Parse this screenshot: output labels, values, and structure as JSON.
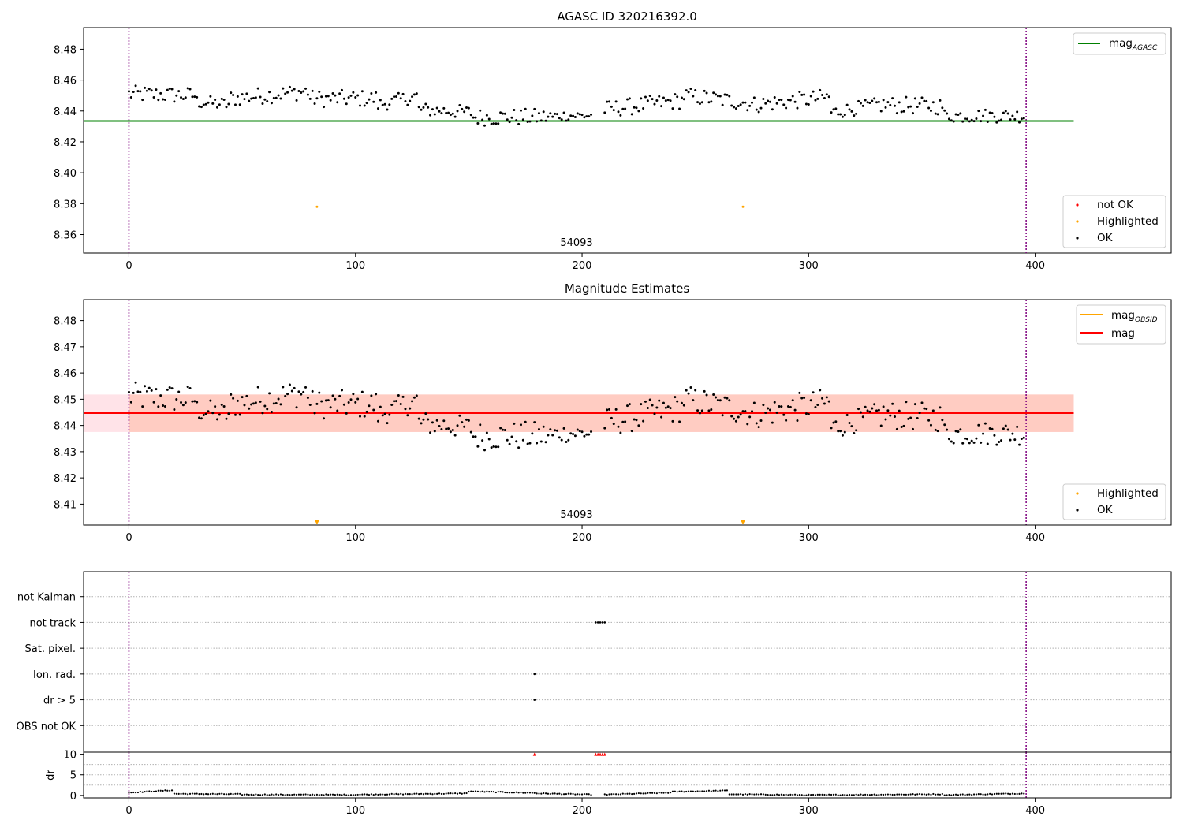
{
  "chart_data": [
    {
      "type": "scatter",
      "title": "AGASC ID 320216392.0",
      "xlim": [
        -20,
        460
      ],
      "ylim": [
        8.348,
        8.494
      ],
      "xticks": [
        0,
        100,
        200,
        300,
        400
      ],
      "yticks": [
        8.36,
        8.38,
        8.4,
        8.42,
        8.44,
        8.46,
        8.48
      ],
      "annotation": "54093",
      "vlines": [
        0,
        396
      ],
      "hline": {
        "name": "mag_AGASC",
        "value": 8.4335,
        "x_range": [
          -20,
          417
        ],
        "color": "#008000"
      },
      "highlighted_points": [
        {
          "x": 83,
          "y": 8.378
        },
        {
          "x": 271,
          "y": 8.378
        }
      ],
      "legend_top": {
        "position": "top-right",
        "entries": [
          {
            "label": "mag",
            "sub": "AGASC",
            "color": "#008000"
          }
        ]
      },
      "legend_bottom": {
        "position": "bottom-right",
        "entries": [
          {
            "label": "not OK",
            "color": "#ff0000"
          },
          {
            "label": "Highlighted",
            "color": "#ffa500"
          },
          {
            "label": "OK",
            "color": "#000000"
          }
        ]
      },
      "series": [
        {
          "name": "OK",
          "segments": [
            {
              "x0": 0,
              "x1": 30,
              "y0": 8.451,
              "y1": 8.45,
              "amp": 0.0055
            },
            {
              "x0": 30,
              "x1": 45,
              "y0": 8.446,
              "y1": 8.444,
              "amp": 0.0045
            },
            {
              "x0": 45,
              "x1": 80,
              "y0": 8.448,
              "y1": 8.453,
              "amp": 0.0055
            },
            {
              "x0": 80,
              "x1": 110,
              "y0": 8.448,
              "y1": 8.448,
              "amp": 0.0055
            },
            {
              "x0": 110,
              "x1": 128,
              "y0": 8.444,
              "y1": 8.45,
              "amp": 0.0045
            },
            {
              "x0": 128,
              "x1": 152,
              "y0": 8.441,
              "y1": 8.439,
              "amp": 0.0045
            },
            {
              "x0": 152,
              "x1": 190,
              "y0": 8.436,
              "y1": 8.436,
              "amp": 0.0055
            },
            {
              "x0": 190,
              "x1": 205,
              "y0": 8.437,
              "y1": 8.437,
              "amp": 0.0035
            },
            {
              "x0": 210,
              "x1": 245,
              "y0": 8.441,
              "y1": 8.447,
              "amp": 0.0055
            },
            {
              "x0": 245,
              "x1": 275,
              "y0": 8.45,
              "y1": 8.445,
              "amp": 0.0055
            },
            {
              "x0": 275,
              "x1": 310,
              "y0": 8.444,
              "y1": 8.449,
              "amp": 0.0055
            },
            {
              "x0": 310,
              "x1": 330,
              "y0": 8.439,
              "y1": 8.444,
              "amp": 0.0045
            },
            {
              "x0": 330,
              "x1": 360,
              "y0": 8.444,
              "y1": 8.443,
              "amp": 0.0055
            },
            {
              "x0": 360,
              "x1": 396,
              "y0": 8.437,
              "y1": 8.437,
              "amp": 0.0045
            }
          ]
        }
      ]
    },
    {
      "type": "scatter",
      "title": "Magnitude Estimates",
      "xlim": [
        -20,
        460
      ],
      "ylim": [
        8.402,
        8.488
      ],
      "xticks": [
        0,
        100,
        200,
        300,
        400
      ],
      "yticks": [
        8.41,
        8.42,
        8.43,
        8.44,
        8.45,
        8.46,
        8.47,
        8.48
      ],
      "annotation": "54093",
      "vlines": [
        0,
        396
      ],
      "mag": {
        "value": 8.4447,
        "x_range": [
          -20,
          417
        ],
        "color": "#ff0000"
      },
      "mag_obsid": {
        "value": 8.4447,
        "band": [
          8.4375,
          8.4518
        ],
        "x_range": [
          0,
          417
        ],
        "color": "#ffa500"
      },
      "band_color": "#ffc0cb",
      "highlighted_markers": [
        {
          "x": 83,
          "y": 8.4025
        },
        {
          "x": 271,
          "y": 8.4025
        }
      ],
      "legend_top": {
        "position": "top-right",
        "entries": [
          {
            "label": "mag",
            "sub": "OBSID",
            "color": "#ffa500"
          },
          {
            "label": "mag",
            "sub": "",
            "color": "#ff0000"
          }
        ]
      },
      "legend_bottom": {
        "position": "bottom-right",
        "entries": [
          {
            "label": "Highlighted",
            "color": "#ffa500"
          },
          {
            "label": "OK",
            "color": "#000000"
          }
        ]
      },
      "series": [
        {
          "name": "OK",
          "same_as_panel": 0
        }
      ]
    },
    {
      "type": "scatter",
      "title": "",
      "xlim": [
        -20,
        460
      ],
      "xticks": [
        0,
        100,
        200,
        300,
        400
      ],
      "vlines": [
        0,
        396
      ],
      "categories": [
        "not Kalman",
        "not track",
        "Sat. pixel.",
        "Ion. rad.",
        "dr > 5",
        "OBS not OK"
      ],
      "flag_points": [
        {
          "category": "not track",
          "x": [
            206,
            207,
            208,
            209,
            210
          ]
        },
        {
          "category": "Ion. rad.",
          "x": [
            179
          ]
        },
        {
          "category": "dr > 5",
          "x": [
            179
          ]
        }
      ]
    },
    {
      "type": "scatter",
      "title": "",
      "ylabel": "dr",
      "xlim": [
        -20,
        460
      ],
      "ylim": [
        -0.6,
        10.5
      ],
      "xticks": [
        0,
        100,
        200,
        300,
        400
      ],
      "yticks": [
        0,
        5,
        10
      ],
      "vlines": [
        0,
        396
      ],
      "capped_points_color": "#ff0000",
      "capped_points": [
        {
          "x": 179,
          "y": 10
        },
        {
          "x": 206,
          "y": 10
        },
        {
          "x": 207,
          "y": 10
        },
        {
          "x": 208,
          "y": 10
        },
        {
          "x": 209,
          "y": 10
        },
        {
          "x": 210,
          "y": 10
        }
      ],
      "series": [
        {
          "name": "dr",
          "segments": [
            {
              "x0": 0,
              "x1": 20,
              "y0": 0.7,
              "y1": 1.3
            },
            {
              "x0": 20,
              "x1": 50,
              "y0": 0.4,
              "y1": 0.3
            },
            {
              "x0": 50,
              "x1": 100,
              "y0": 0.2,
              "y1": 0.15
            },
            {
              "x0": 100,
              "x1": 150,
              "y0": 0.2,
              "y1": 0.5
            },
            {
              "x0": 150,
              "x1": 180,
              "y0": 1.0,
              "y1": 0.6
            },
            {
              "x0": 180,
              "x1": 205,
              "y0": 0.5,
              "y1": 0.2
            },
            {
              "x0": 210,
              "x1": 240,
              "y0": 0.2,
              "y1": 0.7
            },
            {
              "x0": 240,
              "x1": 265,
              "y0": 0.9,
              "y1": 1.2
            },
            {
              "x0": 265,
              "x1": 300,
              "y0": 0.3,
              "y1": 0.1
            },
            {
              "x0": 300,
              "x1": 360,
              "y0": 0.1,
              "y1": 0.3
            },
            {
              "x0": 360,
              "x1": 396,
              "y0": 0.1,
              "y1": 0.5
            }
          ]
        }
      ]
    }
  ]
}
